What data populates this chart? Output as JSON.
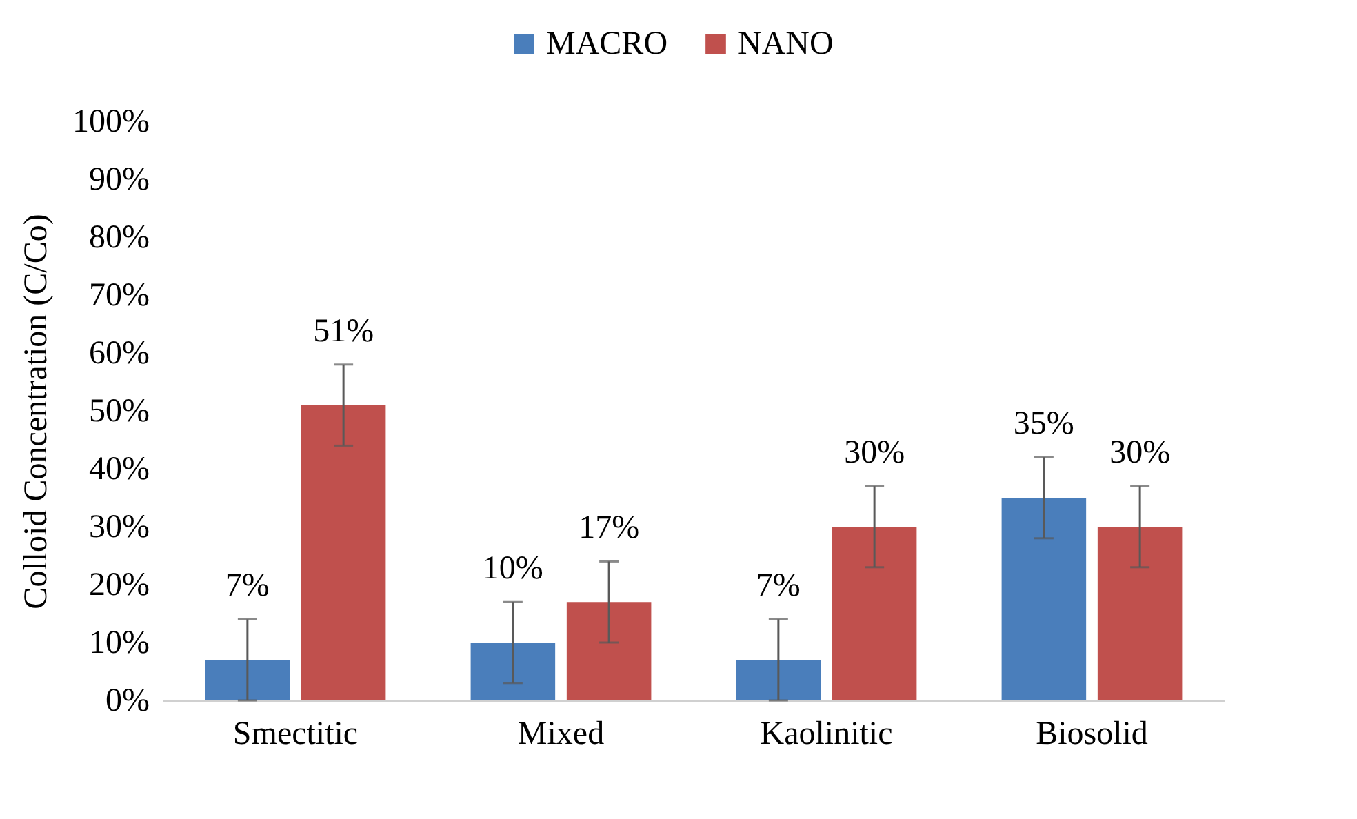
{
  "chart_data": {
    "type": "bar",
    "ylabel": "Colloid Concentration (C/Co)",
    "categories": [
      "Smectitic",
      "Mixed",
      "Kaolinitic",
      "Biosolid"
    ],
    "series": [
      {
        "name": "MACRO",
        "color": "#4a7ebb",
        "values": [
          7,
          10,
          7,
          35
        ],
        "errors": [
          7,
          7,
          7,
          7
        ],
        "value_labels": [
          "7%",
          "10%",
          "7%",
          "35%"
        ]
      },
      {
        "name": "NANO",
        "color": "#c0504d",
        "values": [
          51,
          17,
          30,
          30
        ],
        "errors": [
          7,
          7,
          7,
          7
        ],
        "value_labels": [
          "51%",
          "17%",
          "30%",
          "30%"
        ]
      }
    ],
    "ylim": [
      0,
      100
    ],
    "yticks": [
      {
        "value": 0,
        "label": "0%"
      },
      {
        "value": 10,
        "label": "10%"
      },
      {
        "value": 20,
        "label": "20%"
      },
      {
        "value": 30,
        "label": "30%"
      },
      {
        "value": 40,
        "label": "40%"
      },
      {
        "value": 50,
        "label": "50%"
      },
      {
        "value": 60,
        "label": "60%"
      },
      {
        "value": 70,
        "label": "70%"
      },
      {
        "value": 80,
        "label": "80%"
      },
      {
        "value": 90,
        "label": "90%"
      },
      {
        "value": 100,
        "label": "100%"
      }
    ],
    "legend": "top",
    "grid": false
  }
}
